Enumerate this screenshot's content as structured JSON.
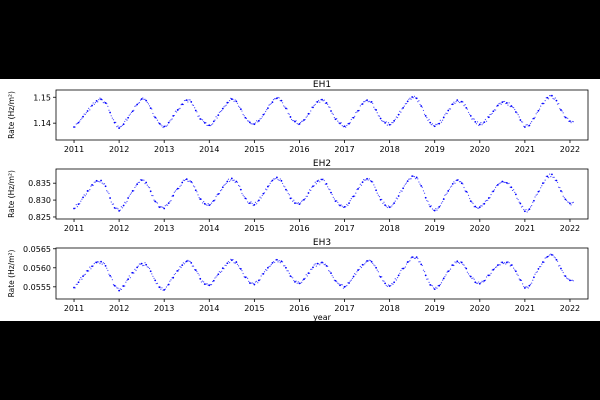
{
  "chart_data": [
    {
      "type": "scatter",
      "title": "EH1",
      "ylabel": "Rate (Hz/m²)",
      "xlabel": "",
      "xlim": [
        2010.6,
        2022.4
      ],
      "ylim": [
        1.1335,
        1.1528
      ],
      "yticks": [
        1.14,
        1.15
      ],
      "ytick_labels": [
        "1.14",
        "1.15"
      ],
      "xticks": [
        2011,
        2012,
        2013,
        2014,
        2015,
        2016,
        2017,
        2018,
        2019,
        2020,
        2021,
        2022
      ],
      "xtick_labels": [
        "2011",
        "2012",
        "2013",
        "2014",
        "2015",
        "2016",
        "2017",
        "2018",
        "2019",
        "2020",
        "2021",
        "2022"
      ],
      "color": "#0000ff",
      "series": [
        {
          "x": [
            2011.0,
            2011.1,
            2011.2,
            2011.3,
            2011.4,
            2011.5,
            2011.6,
            2011.7,
            2011.8,
            2011.9,
            2012.0,
            2012.1,
            2012.2,
            2012.3,
            2012.4,
            2012.5,
            2012.6,
            2012.7,
            2012.8,
            2012.9,
            2013.0,
            2013.1,
            2013.2,
            2013.3,
            2013.4,
            2013.5,
            2013.6,
            2013.7,
            2013.8,
            2013.9,
            2014.0,
            2014.1,
            2014.2,
            2014.3,
            2014.4,
            2014.5,
            2014.6,
            2014.7,
            2014.8,
            2014.9,
            2015.0,
            2015.1,
            2015.2,
            2015.3,
            2015.4,
            2015.5,
            2015.6,
            2015.7,
            2015.8,
            2015.9,
            2016.0,
            2016.1,
            2016.2,
            2016.3,
            2016.4,
            2016.5,
            2016.6,
            2016.7,
            2016.8,
            2016.9,
            2017.0,
            2017.1,
            2017.2,
            2017.3,
            2017.4,
            2017.5,
            2017.6,
            2017.7,
            2017.8,
            2017.9,
            2018.0,
            2018.1,
            2018.2,
            2018.3,
            2018.4,
            2018.5,
            2018.6,
            2018.7,
            2018.8,
            2018.9,
            2019.0,
            2019.1,
            2019.2,
            2019.3,
            2019.4,
            2019.5,
            2019.6,
            2019.7,
            2019.8,
            2019.9,
            2020.0,
            2020.1,
            2020.2,
            2020.3,
            2020.4,
            2020.5,
            2020.6,
            2020.7,
            2020.8,
            2020.9,
            2021.0,
            2021.1,
            2021.2,
            2021.3,
            2021.4,
            2021.5,
            2021.6,
            2021.7,
            2021.8,
            2021.9,
            2022.0
          ],
          "y": [
            1.1385,
            1.1402,
            1.1425,
            1.1447,
            1.1468,
            1.1486,
            1.1492,
            1.1478,
            1.1441,
            1.1402,
            1.1381,
            1.1396,
            1.1421,
            1.1446,
            1.1472,
            1.1493,
            1.1487,
            1.1458,
            1.1422,
            1.1398,
            1.1387,
            1.1402,
            1.1428,
            1.1451,
            1.1473,
            1.1489,
            1.1482,
            1.1449,
            1.1416,
            1.1401,
            1.1392,
            1.1407,
            1.1431,
            1.1456,
            1.1479,
            1.1493,
            1.1484,
            1.1454,
            1.1421,
            1.1403,
            1.1396,
            1.1409,
            1.1433,
            1.1458,
            1.1481,
            1.1496,
            1.1487,
            1.1457,
            1.1424,
            1.1406,
            1.1397,
            1.1412,
            1.1436,
            1.1461,
            1.1482,
            1.1491,
            1.1478,
            1.1447,
            1.1415,
            1.1399,
            1.1388,
            1.1398,
            1.1421,
            1.1448,
            1.1474,
            1.1489,
            1.1482,
            1.1451,
            1.1418,
            1.1401,
            1.1394,
            1.1409,
            1.1433,
            1.1459,
            1.1484,
            1.1501,
            1.1496,
            1.1466,
            1.1428,
            1.1402,
            1.1388,
            1.1398,
            1.1422,
            1.1449,
            1.1473,
            1.1489,
            1.1483,
            1.1459,
            1.1428,
            1.1405,
            1.1395,
            1.1404,
            1.1423,
            1.1446,
            1.1468,
            1.1481,
            1.1478,
            1.1466,
            1.1443,
            1.1412,
            1.1385,
            1.1391,
            1.1418,
            1.1448,
            1.1476,
            1.1498,
            1.1506,
            1.1487,
            1.1451,
            1.1422,
            1.1408
          ]
        }
      ]
    },
    {
      "type": "scatter",
      "title": "EH2",
      "ylabel": "Rate (Hz/m²)",
      "xlabel": "",
      "xlim": [
        2010.6,
        2022.4
      ],
      "ylim": [
        0.8244,
        0.8392
      ],
      "yticks": [
        0.825,
        0.83,
        0.835
      ],
      "ytick_labels": [
        "0.825",
        "0.830",
        "0.835"
      ],
      "xticks": [
        2011,
        2012,
        2013,
        2014,
        2015,
        2016,
        2017,
        2018,
        2019,
        2020,
        2021,
        2022
      ],
      "xtick_labels": [
        "2011",
        "2012",
        "2013",
        "2014",
        "2015",
        "2016",
        "2017",
        "2018",
        "2019",
        "2020",
        "2021",
        "2022"
      ],
      "color": "#0000ff",
      "series": [
        {
          "x": [
            2011.0,
            2011.1,
            2011.2,
            2011.3,
            2011.4,
            2011.5,
            2011.6,
            2011.7,
            2011.8,
            2011.9,
            2012.0,
            2012.1,
            2012.2,
            2012.3,
            2012.4,
            2012.5,
            2012.6,
            2012.7,
            2012.8,
            2012.9,
            2013.0,
            2013.1,
            2013.2,
            2013.3,
            2013.4,
            2013.5,
            2013.6,
            2013.7,
            2013.8,
            2013.9,
            2014.0,
            2014.1,
            2014.2,
            2014.3,
            2014.4,
            2014.5,
            2014.6,
            2014.7,
            2014.8,
            2014.9,
            2015.0,
            2015.1,
            2015.2,
            2015.3,
            2015.4,
            2015.5,
            2015.6,
            2015.7,
            2015.8,
            2015.9,
            2016.0,
            2016.1,
            2016.2,
            2016.3,
            2016.4,
            2016.5,
            2016.6,
            2016.7,
            2016.8,
            2016.9,
            2017.0,
            2017.1,
            2017.2,
            2017.3,
            2017.4,
            2017.5,
            2017.6,
            2017.7,
            2017.8,
            2017.9,
            2018.0,
            2018.1,
            2018.2,
            2018.3,
            2018.4,
            2018.5,
            2018.6,
            2018.7,
            2018.8,
            2018.9,
            2019.0,
            2019.1,
            2019.2,
            2019.3,
            2019.4,
            2019.5,
            2019.6,
            2019.7,
            2019.8,
            2019.9,
            2020.0,
            2020.1,
            2020.2,
            2020.3,
            2020.4,
            2020.5,
            2020.6,
            2020.7,
            2020.8,
            2020.9,
            2021.0,
            2021.1,
            2021.2,
            2021.3,
            2021.4,
            2021.5,
            2021.6,
            2021.7,
            2021.8,
            2021.9,
            2022.0
          ],
          "y": [
            0.8275,
            0.8288,
            0.8308,
            0.8327,
            0.8345,
            0.8357,
            0.8358,
            0.8341,
            0.8306,
            0.8277,
            0.8268,
            0.8284,
            0.8306,
            0.8327,
            0.8347,
            0.8359,
            0.8352,
            0.8326,
            0.8296,
            0.8279,
            0.8275,
            0.8291,
            0.8313,
            0.8334,
            0.8352,
            0.8362,
            0.8354,
            0.8329,
            0.8303,
            0.8289,
            0.8285,
            0.8298,
            0.8318,
            0.8338,
            0.8355,
            0.8364,
            0.8355,
            0.8331,
            0.8305,
            0.8291,
            0.8286,
            0.8299,
            0.8319,
            0.834,
            0.8358,
            0.8367,
            0.8357,
            0.8331,
            0.8305,
            0.8291,
            0.8288,
            0.8301,
            0.8321,
            0.8341,
            0.8356,
            0.8361,
            0.8348,
            0.8322,
            0.8297,
            0.8284,
            0.828,
            0.8291,
            0.8311,
            0.8333,
            0.8353,
            0.8363,
            0.8355,
            0.8329,
            0.8301,
            0.8285,
            0.8279,
            0.8291,
            0.8312,
            0.8335,
            0.8356,
            0.8371,
            0.8367,
            0.8342,
            0.8307,
            0.8281,
            0.8269,
            0.828,
            0.8303,
            0.8327,
            0.8348,
            0.8359,
            0.835,
            0.8325,
            0.8297,
            0.8281,
            0.8279,
            0.8289,
            0.8306,
            0.8326,
            0.8345,
            0.8355,
            0.8351,
            0.8338,
            0.8317,
            0.829,
            0.8267,
            0.8273,
            0.8298,
            0.8325,
            0.835,
            0.837,
            0.8376,
            0.8358,
            0.8327,
            0.8302,
            0.829
          ]
        }
      ]
    },
    {
      "type": "scatter",
      "title": "EH3",
      "ylabel": "Rate (Hz/m²)",
      "xlabel": "year",
      "xlim": [
        2010.6,
        2022.4
      ],
      "ylim": [
        0.05518,
        0.05652
      ],
      "yticks": [
        0.0555,
        0.056,
        0.0565
      ],
      "ytick_labels": [
        "0.0555",
        "0.0560",
        "0.0565"
      ],
      "xticks": [
        2011,
        2012,
        2013,
        2014,
        2015,
        2016,
        2017,
        2018,
        2019,
        2020,
        2021,
        2022
      ],
      "xtick_labels": [
        "2011",
        "2012",
        "2013",
        "2014",
        "2015",
        "2016",
        "2017",
        "2018",
        "2019",
        "2020",
        "2021",
        "2022"
      ],
      "color": "#0000ff",
      "series": [
        {
          "x": [
            2011.0,
            2011.1,
            2011.2,
            2011.3,
            2011.4,
            2011.5,
            2011.6,
            2011.7,
            2011.8,
            2011.9,
            2012.0,
            2012.1,
            2012.2,
            2012.3,
            2012.4,
            2012.5,
            2012.6,
            2012.7,
            2012.8,
            2012.9,
            2013.0,
            2013.1,
            2013.2,
            2013.3,
            2013.4,
            2013.5,
            2013.6,
            2013.7,
            2013.8,
            2013.9,
            2014.0,
            2014.1,
            2014.2,
            2014.3,
            2014.4,
            2014.5,
            2014.6,
            2014.7,
            2014.8,
            2014.9,
            2015.0,
            2015.1,
            2015.2,
            2015.3,
            2015.4,
            2015.5,
            2015.6,
            2015.7,
            2015.8,
            2015.9,
            2016.0,
            2016.1,
            2016.2,
            2016.3,
            2016.4,
            2016.5,
            2016.6,
            2016.7,
            2016.8,
            2016.9,
            2017.0,
            2017.1,
            2017.2,
            2017.3,
            2017.4,
            2017.5,
            2017.6,
            2017.7,
            2017.8,
            2017.9,
            2018.0,
            2018.1,
            2018.2,
            2018.3,
            2018.4,
            2018.5,
            2018.6,
            2018.7,
            2018.8,
            2018.9,
            2019.0,
            2019.1,
            2019.2,
            2019.3,
            2019.4,
            2019.5,
            2019.6,
            2019.7,
            2019.8,
            2019.9,
            2020.0,
            2020.1,
            2020.2,
            2020.3,
            2020.4,
            2020.5,
            2020.6,
            2020.7,
            2020.8,
            2020.9,
            2021.0,
            2021.1,
            2021.2,
            2021.3,
            2021.4,
            2021.5,
            2021.6,
            2021.7,
            2021.8,
            2021.9,
            2022.0
          ],
          "y": [
            0.05548,
            0.05562,
            0.05578,
            0.05592,
            0.05604,
            0.05614,
            0.05616,
            0.05605,
            0.05579,
            0.05553,
            0.0554,
            0.05552,
            0.0557,
            0.05587,
            0.05601,
            0.05611,
            0.05608,
            0.05591,
            0.05567,
            0.05549,
            0.05542,
            0.05556,
            0.05574,
            0.05592,
            0.05607,
            0.05617,
            0.05613,
            0.05594,
            0.05571,
            0.05557,
            0.05554,
            0.05566,
            0.05583,
            0.05599,
            0.05612,
            0.0562,
            0.05615,
            0.05597,
            0.05575,
            0.0556,
            0.05556,
            0.05567,
            0.05584,
            0.056,
            0.05613,
            0.05621,
            0.05617,
            0.056,
            0.05578,
            0.05563,
            0.05559,
            0.0557,
            0.05586,
            0.05601,
            0.05611,
            0.05614,
            0.05605,
            0.05586,
            0.05566,
            0.05554,
            0.0555,
            0.0556,
            0.05577,
            0.05594,
            0.05608,
            0.05618,
            0.05616,
            0.056,
            0.05576,
            0.05559,
            0.05552,
            0.05562,
            0.0558,
            0.05598,
            0.05615,
            0.05628,
            0.05628,
            0.05609,
            0.0558,
            0.05555,
            0.05544,
            0.05553,
            0.05572,
            0.05591,
            0.05607,
            0.05617,
            0.05614,
            0.05598,
            0.05577,
            0.05562,
            0.05558,
            0.05566,
            0.0558,
            0.05595,
            0.05607,
            0.05614,
            0.05614,
            0.05607,
            0.05591,
            0.05568,
            0.05547,
            0.05553,
            0.05575,
            0.05597,
            0.05615,
            0.05629,
            0.05634,
            0.05621,
            0.05598,
            0.05578,
            0.05567
          ]
        }
      ]
    }
  ]
}
